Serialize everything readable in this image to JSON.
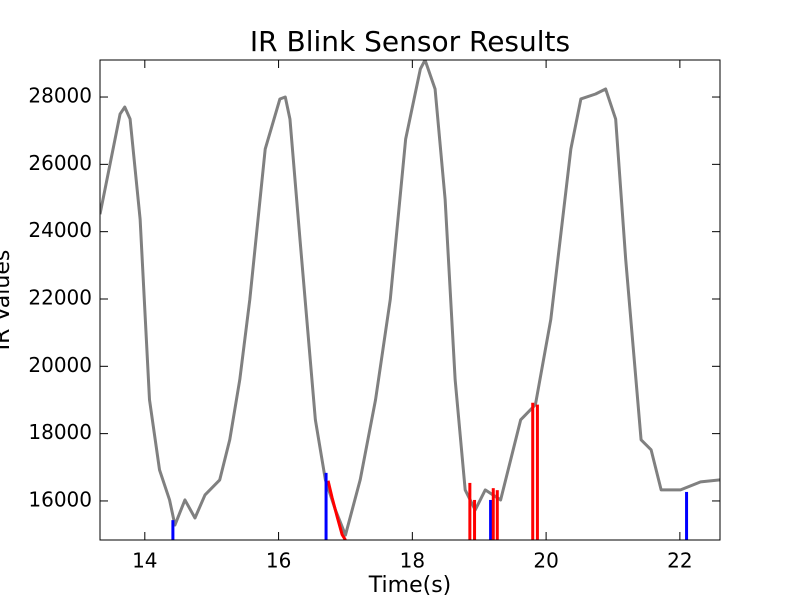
{
  "chart_data": {
    "type": "line",
    "title": "IR Blink Sensor Results",
    "xlabel": "Time(s)",
    "ylabel": "IR Values",
    "xlim": [
      13.33,
      22.6
    ],
    "ylim": [
      14840,
      29100
    ],
    "xticks": [
      14,
      16,
      18,
      20,
      22
    ],
    "yticks": [
      16000,
      18000,
      20000,
      22000,
      24000,
      26000,
      28000
    ],
    "series": [
      {
        "color": "#808080",
        "x": [
          13.33,
          13.48,
          13.63,
          13.7,
          13.78,
          13.93,
          14.07,
          14.22,
          14.37,
          14.45,
          14.6,
          14.75,
          14.9,
          15.12,
          15.27,
          15.42,
          15.57,
          15.8,
          16.02,
          16.1,
          16.17,
          16.32,
          16.55,
          16.7,
          16.85,
          17.0,
          17.22,
          17.45,
          17.67,
          17.9,
          18.12,
          18.19,
          18.34,
          18.49,
          18.64,
          18.79,
          18.94,
          19.09,
          19.32,
          19.47,
          19.62,
          19.84,
          20.07,
          20.37,
          20.52,
          20.74,
          20.89,
          21.04,
          21.19,
          21.42,
          21.57,
          21.72,
          22.01,
          22.31,
          22.6
        ],
        "values": [
          24517,
          26006,
          27495,
          27703,
          27346,
          24368,
          19008,
          16923,
          16030,
          15285,
          16030,
          15494,
          16179,
          16625,
          17817,
          19603,
          21986,
          26453,
          27942,
          28001,
          27346,
          23772,
          18412,
          16625,
          15732,
          14987,
          16625,
          19008,
          21986,
          26750,
          28835,
          29100,
          28239,
          24964,
          19603,
          16328,
          15732,
          16328,
          16030,
          17221,
          18412,
          18859,
          21390,
          26453,
          27942,
          28090,
          28239,
          27346,
          23177,
          17817,
          17519,
          16328,
          16328,
          16566,
          16625
        ]
      },
      {
        "color": "#ff0000",
        "x": [
          16.74,
          16.8,
          16.88,
          16.95,
          17.0
        ],
        "values": [
          16600,
          16100,
          15500,
          15000,
          14840
        ]
      }
    ],
    "spikes": [
      {
        "color": "#0000ff",
        "x": [
          14.42,
          16.71,
          19.17,
          22.1
        ],
        "values": [
          15430,
          16834,
          16030,
          16268
        ]
      },
      {
        "color": "#ff0000",
        "x": [
          18.86,
          18.93,
          19.21,
          19.27,
          19.8,
          19.87
        ],
        "values": [
          16536,
          16030,
          16380,
          16320,
          18919,
          18860
        ]
      }
    ]
  }
}
